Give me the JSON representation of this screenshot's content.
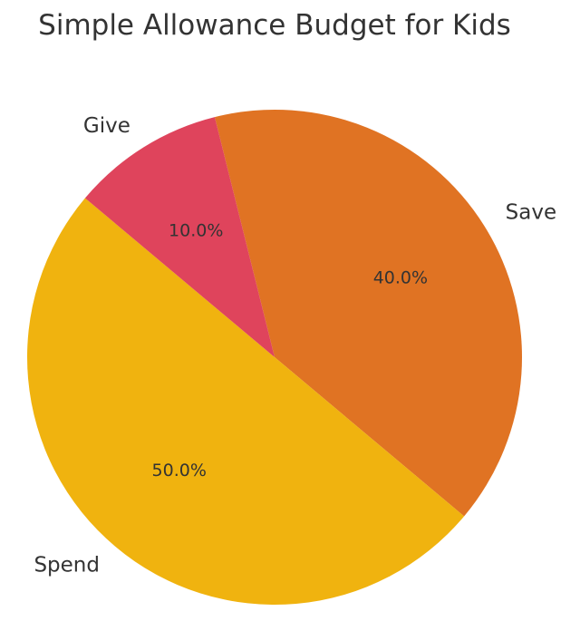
{
  "chart_data": {
    "type": "pie",
    "title": "Simple Allowance Budget for Kids",
    "categories": [
      "Save",
      "Spend",
      "Give"
    ],
    "values": [
      40,
      50,
      10
    ],
    "percent_labels": [
      "40.0%",
      "50.0%",
      "10.0%"
    ],
    "colors": [
      "#e07323",
      "#f0b30f",
      "#df445c"
    ],
    "startangle": 104,
    "counterclock": false,
    "legend": "none"
  }
}
